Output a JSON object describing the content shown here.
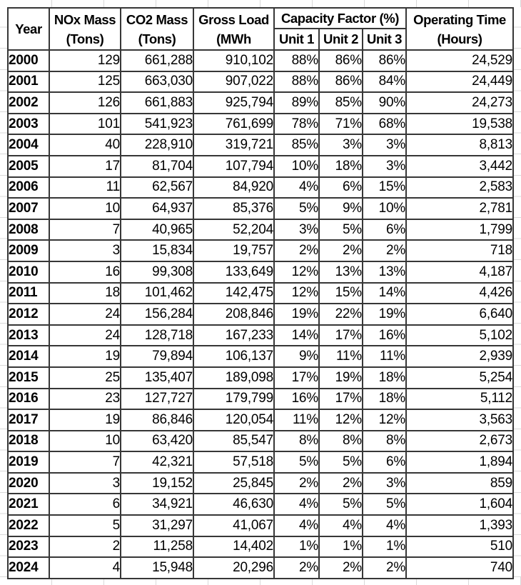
{
  "table": {
    "headers": {
      "year": "Year",
      "nox": {
        "line1": "NOx Mass",
        "line2": "(Tons)"
      },
      "co2": {
        "line1": "CO2 Mass",
        "line2": "(Tons)"
      },
      "gross": {
        "line1": "Gross Load",
        "line2": "(MWh"
      },
      "capacity_group": "Capacity Factor (%)",
      "unit1": "Unit 1",
      "unit2": "Unit 2",
      "unit3": "Unit 3",
      "operating": {
        "line1": "Operating Time",
        "line2": "(Hours)"
      }
    },
    "rows": [
      {
        "year": "2000",
        "nox": "129",
        "co2": "661,288",
        "gross": "910,102",
        "unit1": "88%",
        "unit2": "86%",
        "unit3": "86%",
        "hours": "24,529"
      },
      {
        "year": "2001",
        "nox": "125",
        "co2": "663,030",
        "gross": "907,022",
        "unit1": "88%",
        "unit2": "86%",
        "unit3": "84%",
        "hours": "24,449"
      },
      {
        "year": "2002",
        "nox": "126",
        "co2": "661,883",
        "gross": "925,794",
        "unit1": "89%",
        "unit2": "85%",
        "unit3": "90%",
        "hours": "24,273"
      },
      {
        "year": "2003",
        "nox": "101",
        "co2": "541,923",
        "gross": "761,699",
        "unit1": "78%",
        "unit2": "71%",
        "unit3": "68%",
        "hours": "19,538"
      },
      {
        "year": "2004",
        "nox": "40",
        "co2": "228,910",
        "gross": "319,721",
        "unit1": "85%",
        "unit2": "3%",
        "unit3": "3%",
        "hours": "8,813"
      },
      {
        "year": "2005",
        "nox": "17",
        "co2": "81,704",
        "gross": "107,794",
        "unit1": "10%",
        "unit2": "18%",
        "unit3": "3%",
        "hours": "3,442"
      },
      {
        "year": "2006",
        "nox": "11",
        "co2": "62,567",
        "gross": "84,920",
        "unit1": "4%",
        "unit2": "6%",
        "unit3": "15%",
        "hours": "2,583"
      },
      {
        "year": "2007",
        "nox": "10",
        "co2": "64,937",
        "gross": "85,376",
        "unit1": "5%",
        "unit2": "9%",
        "unit3": "10%",
        "hours": "2,781"
      },
      {
        "year": "2008",
        "nox": "7",
        "co2": "40,965",
        "gross": "52,204",
        "unit1": "3%",
        "unit2": "5%",
        "unit3": "6%",
        "hours": "1,799"
      },
      {
        "year": "2009",
        "nox": "3",
        "co2": "15,834",
        "gross": "19,757",
        "unit1": "2%",
        "unit2": "2%",
        "unit3": "2%",
        "hours": "718"
      },
      {
        "year": "2010",
        "nox": "16",
        "co2": "99,308",
        "gross": "133,649",
        "unit1": "12%",
        "unit2": "13%",
        "unit3": "13%",
        "hours": "4,187"
      },
      {
        "year": "2011",
        "nox": "18",
        "co2": "101,462",
        "gross": "142,475",
        "unit1": "12%",
        "unit2": "15%",
        "unit3": "14%",
        "hours": "4,426"
      },
      {
        "year": "2012",
        "nox": "24",
        "co2": "156,284",
        "gross": "208,846",
        "unit1": "19%",
        "unit2": "22%",
        "unit3": "19%",
        "hours": "6,640"
      },
      {
        "year": "2013",
        "nox": "24",
        "co2": "128,718",
        "gross": "167,233",
        "unit1": "14%",
        "unit2": "17%",
        "unit3": "16%",
        "hours": "5,102"
      },
      {
        "year": "2014",
        "nox": "19",
        "co2": "79,894",
        "gross": "106,137",
        "unit1": "9%",
        "unit2": "11%",
        "unit3": "11%",
        "hours": "2,939"
      },
      {
        "year": "2015",
        "nox": "25",
        "co2": "135,407",
        "gross": "189,098",
        "unit1": "17%",
        "unit2": "19%",
        "unit3": "18%",
        "hours": "5,254"
      },
      {
        "year": "2016",
        "nox": "23",
        "co2": "127,727",
        "gross": "179,799",
        "unit1": "16%",
        "unit2": "17%",
        "unit3": "18%",
        "hours": "5,112"
      },
      {
        "year": "2017",
        "nox": "19",
        "co2": "86,846",
        "gross": "120,054",
        "unit1": "11%",
        "unit2": "12%",
        "unit3": "12%",
        "hours": "3,563"
      },
      {
        "year": "2018",
        "nox": "10",
        "co2": "63,420",
        "gross": "85,547",
        "unit1": "8%",
        "unit2": "8%",
        "unit3": "8%",
        "hours": "2,673"
      },
      {
        "year": "2019",
        "nox": "7",
        "co2": "42,321",
        "gross": "57,518",
        "unit1": "5%",
        "unit2": "5%",
        "unit3": "6%",
        "hours": "1,894"
      },
      {
        "year": "2020",
        "nox": "3",
        "co2": "19,152",
        "gross": "25,845",
        "unit1": "2%",
        "unit2": "2%",
        "unit3": "3%",
        "hours": "859"
      },
      {
        "year": "2021",
        "nox": "6",
        "co2": "34,921",
        "gross": "46,630",
        "unit1": "4%",
        "unit2": "5%",
        "unit3": "5%",
        "hours": "1,604"
      },
      {
        "year": "2022",
        "nox": "5",
        "co2": "31,297",
        "gross": "41,067",
        "unit1": "4%",
        "unit2": "4%",
        "unit3": "4%",
        "hours": "1,393"
      },
      {
        "year": "2023",
        "nox": "2",
        "co2": "11,258",
        "gross": "14,402",
        "unit1": "1%",
        "unit2": "1%",
        "unit3": "1%",
        "hours": "510"
      },
      {
        "year": "2024",
        "nox": "4",
        "co2": "15,948",
        "gross": "20,296",
        "unit1": "2%",
        "unit2": "2%",
        "unit3": "2%",
        "hours": "740"
      }
    ]
  },
  "colors": {
    "table_border": "#373737",
    "outer_gridline": "#d9d9d9",
    "text": "#000000",
    "background": "#ffffff"
  }
}
